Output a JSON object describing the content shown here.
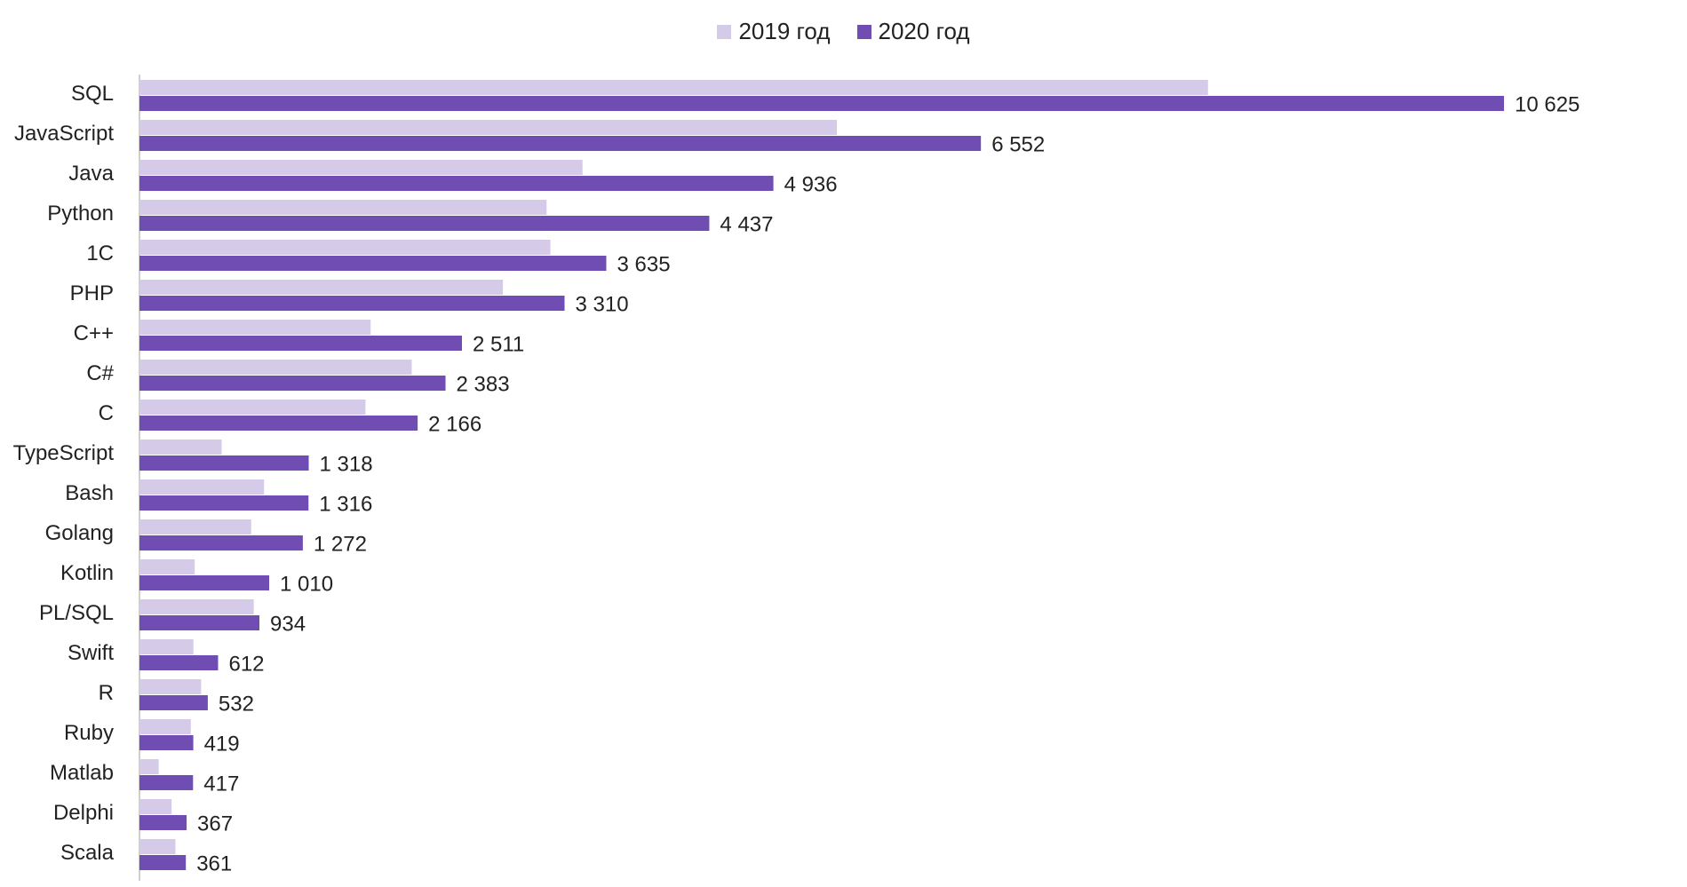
{
  "chart_data": {
    "type": "bar",
    "orientation": "horizontal",
    "categories": [
      "SQL",
      "JavaScript",
      "Java",
      "Python",
      "1C",
      "PHP",
      "C++",
      "C#",
      "C",
      "TypeScript",
      "Bash",
      "Golang",
      "Kotlin",
      "PL/SQL",
      "Swift",
      "R",
      "Ruby",
      "Matlab",
      "Delphi",
      "Scala"
    ],
    "series": [
      {
        "name": "2019 год",
        "color": "#d5cbe8",
        "show_labels": false,
        "values": [
          8320,
          5430,
          3450,
          3170,
          3200,
          2830,
          1800,
          2120,
          1760,
          640,
          970,
          870,
          430,
          890,
          420,
          480,
          400,
          150,
          250,
          280
        ]
      },
      {
        "name": "2020 год",
        "color": "#6f4db3",
        "show_labels": true,
        "values": [
          10625,
          6552,
          4936,
          4437,
          3635,
          3310,
          2511,
          2383,
          2166,
          1318,
          1316,
          1272,
          1010,
          934,
          612,
          532,
          419,
          417,
          367,
          361
        ],
        "labels": [
          "10 625",
          "6 552",
          "4 936",
          "4 437",
          "3 635",
          "3 310",
          "2 511",
          "2 383",
          "2 166",
          "1 318",
          "1 316",
          "1 272",
          "1 010",
          "934",
          "612",
          "532",
          "419",
          "417",
          "367",
          "361"
        ]
      }
    ],
    "xlim": [
      0,
      10625
    ],
    "grid": false,
    "legend_position": "top-center"
  },
  "legend": {
    "item_2019": "2019 год",
    "item_2020": "2020 год",
    "color_2019": "#d5cbe8",
    "color_2020": "#6f4db3"
  }
}
